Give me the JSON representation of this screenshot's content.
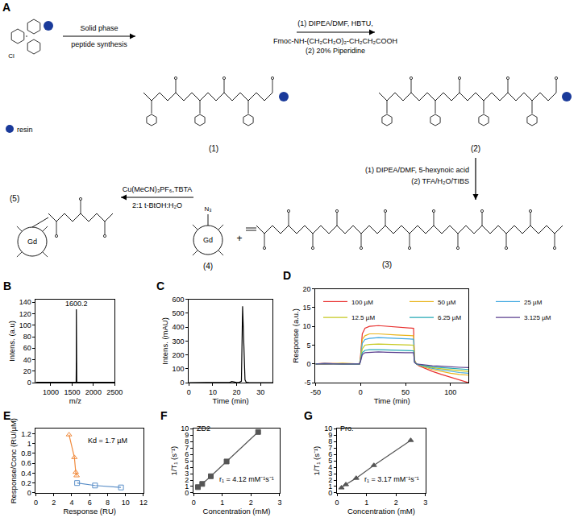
{
  "scheme": {
    "panel": "A",
    "resin_label": "resin",
    "atom_labels": {
      "chloride": "Cl",
      "gadolinium": "Gd",
      "azide": "N₃"
    },
    "step1": [
      "Solid phase",
      "peptide synthesis"
    ],
    "step2": [
      "(1) DIPEA/DMF, HBTU,",
      "Fmoc-NH-(CH₂CH₂O)₂-CH₂CH₂COOH",
      "(2) 20% Piperidine"
    ],
    "step3": [
      "(1) DIPEA/DMF, 5-hexynoic acid",
      "(2) TFA/H₂O/TIBS"
    ],
    "step4": [
      "Cu(MeCN)₃PF₆,TBTA",
      "2:1 t-BtOH:H₂O"
    ],
    "compounds": [
      "(1)",
      "(2)",
      "(3)",
      "(4)",
      "(5)"
    ],
    "plus": "+"
  },
  "chart_data": [
    {
      "panel": "B",
      "type": "line",
      "x_label": "m/z",
      "y_label": "Intens. (a.u)",
      "grid": false,
      "xlim": [
        650,
        2500
      ],
      "ylim": [
        0,
        145
      ],
      "xticks": [
        1000,
        1500,
        2000,
        2500
      ],
      "yticks": [
        0,
        20,
        40,
        60,
        80,
        100,
        120,
        140
      ],
      "series": [
        {
          "color": "#000000",
          "line_style": "solid",
          "x": [
            650,
            800,
            1000,
            1200,
            1400,
            1550,
            1595,
            1599,
            1600.2,
            1601,
            1603,
            1610,
            1700,
            1900,
            2100,
            2300,
            2500
          ],
          "values": [
            0.5,
            0.5,
            0.5,
            0.5,
            0.5,
            0.5,
            1,
            40,
            128,
            75,
            20,
            0.5,
            0.5,
            0.5,
            0.5,
            0.5,
            0.5
          ]
        }
      ],
      "annotations": [
        {
          "text": "1600.2",
          "x": 1600.2,
          "y": 128
        }
      ]
    },
    {
      "panel": "C",
      "type": "line",
      "x_label": "Time (min)",
      "y_label": "Intens. (mAU)",
      "grid": false,
      "xlim": [
        0,
        35
      ],
      "ylim": [
        0,
        600
      ],
      "xticks": [
        0,
        10,
        20,
        30
      ],
      "yticks": [
        0,
        100,
        200,
        300,
        400,
        500,
        600
      ],
      "series": [
        {
          "color": "#000000",
          "line_style": "solid",
          "x": [
            0,
            5,
            10,
            15,
            17,
            18,
            19,
            20,
            21,
            22,
            22.5,
            23,
            23.5,
            24,
            25,
            30,
            35
          ],
          "values": [
            0,
            0,
            0,
            0,
            2,
            8,
            3,
            1,
            2,
            10,
            550,
            300,
            20,
            3,
            1,
            0,
            0
          ]
        }
      ],
      "annotations": []
    },
    {
      "panel": "D",
      "type": "line",
      "x_label": "Time (min)",
      "y_label": "Response (a.u.)",
      "grid": false,
      "xlim": [
        -50,
        120
      ],
      "ylim": [
        -5,
        20
      ],
      "xticks": [
        -50,
        0,
        50,
        100
      ],
      "yticks": [
        -5,
        0,
        5,
        10,
        15,
        20
      ],
      "series": [
        {
          "name": "100 µM",
          "color": "#e8312f",
          "line_style": "solid",
          "x": [
            -50,
            -40,
            -20,
            -1,
            0,
            2,
            5,
            10,
            20,
            30,
            40,
            50,
            59,
            60,
            62,
            65,
            70,
            80,
            90,
            100,
            110,
            120
          ],
          "values": [
            0,
            0.2,
            0,
            0,
            2,
            8,
            9.5,
            10,
            10.2,
            10,
            9.8,
            9.6,
            9.5,
            1,
            0,
            -0.5,
            -1,
            -2,
            -2.8,
            -3.5,
            -4.2,
            -5
          ]
        },
        {
          "name": "50 µM",
          "color": "#e8b41a",
          "line_style": "solid",
          "x": [
            -50,
            -40,
            -20,
            -1,
            0,
            2,
            5,
            10,
            20,
            30,
            40,
            50,
            59,
            60,
            62,
            65,
            70,
            80,
            90,
            100,
            110,
            120
          ],
          "values": [
            0,
            0,
            0.2,
            0,
            1.5,
            6.5,
            7.5,
            8,
            8,
            7.8,
            7.7,
            7.6,
            7.5,
            1,
            0,
            -0.3,
            -0.8,
            -1.5,
            -2,
            -2.5,
            -2.8,
            -3
          ]
        },
        {
          "name": "25 µM",
          "color": "#3fa8e0",
          "line_style": "solid",
          "x": [
            -50,
            -40,
            -20,
            -1,
            0,
            2,
            5,
            10,
            20,
            30,
            40,
            50,
            59,
            60,
            62,
            65,
            70,
            80,
            90,
            100,
            110,
            120
          ],
          "values": [
            0,
            0.1,
            0,
            0,
            1.2,
            5.5,
            6.5,
            6.8,
            7,
            6.9,
            6.8,
            6.7,
            6.6,
            0.8,
            0,
            -0.3,
            -0.6,
            -1.2,
            -1.6,
            -2,
            -2.3,
            -2.5
          ]
        },
        {
          "name": "12.5 µM",
          "color": "#c6c81f",
          "line_style": "solid",
          "x": [
            -50,
            -40,
            -20,
            -1,
            0,
            2,
            5,
            10,
            20,
            30,
            40,
            50,
            59,
            60,
            62,
            65,
            70,
            80,
            90,
            100,
            110,
            120
          ],
          "values": [
            0,
            0,
            0.1,
            0,
            1,
            4,
            5,
            5.2,
            5.3,
            5.2,
            5.1,
            5,
            5,
            0.7,
            0,
            -0.2,
            -0.5,
            -1,
            -1.3,
            -1.6,
            -1.8,
            -2
          ]
        },
        {
          "name": "6.25 µM",
          "color": "#25a9b5",
          "line_style": "solid",
          "x": [
            -50,
            -40,
            -20,
            -1,
            0,
            2,
            5,
            10,
            20,
            30,
            40,
            50,
            59,
            60,
            62,
            65,
            70,
            80,
            90,
            100,
            110,
            120
          ],
          "values": [
            0,
            0.1,
            0,
            0,
            0.8,
            3,
            3.6,
            3.8,
            3.8,
            3.7,
            3.7,
            3.6,
            3.5,
            0.5,
            0,
            -0.2,
            -0.4,
            -0.8,
            -1,
            -1.2,
            -1.4,
            -1.5
          ]
        },
        {
          "name": "3.125 µM",
          "color": "#5b3f8f",
          "line_style": "solid",
          "x": [
            -50,
            -40,
            -20,
            -1,
            0,
            2,
            5,
            10,
            20,
            30,
            40,
            50,
            59,
            60,
            62,
            65,
            70,
            80,
            90,
            100,
            110,
            120
          ],
          "values": [
            0,
            0,
            0.1,
            0,
            0.6,
            2.5,
            3,
            3.1,
            3.2,
            3.1,
            3,
            3,
            3,
            0.4,
            0,
            -0.1,
            -0.3,
            -0.5,
            -0.6,
            -0.8,
            -0.9,
            -1
          ]
        }
      ],
      "annotations": []
    },
    {
      "panel": "E",
      "type": "scatter",
      "x_label": "Response (RU)",
      "y_label": "Response/Conc (RU/µM)",
      "grid": false,
      "xlim": [
        0,
        12
      ],
      "ylim": [
        0,
        1.3
      ],
      "xticks": [
        0,
        2,
        4,
        6,
        8,
        10,
        12
      ],
      "yticks": [
        0,
        0.2,
        0.4,
        0.6,
        0.8,
        1,
        1.2
      ],
      "series": [
        {
          "color": "#f08a3c",
          "marker": "triangle-up-open",
          "line_style": "solid",
          "x": [
            3.7,
            4.3,
            4.45,
            4.55
          ],
          "values": [
            1.18,
            0.72,
            0.42,
            0.35
          ]
        },
        {
          "color": "#5b8fc8",
          "marker": "square-open",
          "line_style": "solid",
          "x": [
            4.6,
            6.6,
            9.5
          ],
          "values": [
            0.2,
            0.15,
            0.11
          ]
        }
      ],
      "annotations": [
        {
          "text": "Kd = 1.7 µM",
          "x": 8,
          "y": 0.95
        }
      ]
    },
    {
      "panel": "F",
      "type": "scatter",
      "x_label": "Concentration (mM)",
      "y_label": "1/T₁ (s⁻¹)",
      "grid": false,
      "xlim": [
        0,
        3
      ],
      "ylim": [
        0,
        10
      ],
      "xticks": [
        0,
        1,
        2,
        3
      ],
      "yticks": [
        0,
        1,
        2,
        3,
        4,
        5,
        6,
        7,
        8,
        9,
        10
      ],
      "series": [
        {
          "color": "#555555",
          "marker": "square",
          "line_style": "solid",
          "x": [
            0.15,
            0.3,
            0.6,
            1.15,
            2.25
          ],
          "values": [
            0.9,
            1.4,
            2.6,
            4.9,
            9.5
          ]
        }
      ],
      "annotations": [
        {
          "text": "ZD2",
          "x": 0.35,
          "y": 9.2
        },
        {
          "text": "r₁ = 4.12 mM⁻¹s⁻¹",
          "x": 1.85,
          "y": 1.2
        }
      ]
    },
    {
      "panel": "G",
      "type": "scatter",
      "x_label": "Concentration (mM)",
      "y_label": "1/T₁ (s⁻¹)",
      "grid": false,
      "xlim": [
        0,
        3
      ],
      "ylim": [
        0,
        10
      ],
      "xticks": [
        0,
        1,
        2,
        3
      ],
      "yticks": [
        0,
        1,
        2,
        3,
        4,
        5,
        6,
        7,
        8,
        9,
        10
      ],
      "series": [
        {
          "color": "#555555",
          "marker": "triangle-up",
          "line_style": "solid",
          "x": [
            0.15,
            0.3,
            0.65,
            1.25,
            2.5
          ],
          "values": [
            0.8,
            1.3,
            2.3,
            4.3,
            8.2
          ]
        }
      ],
      "annotations": [
        {
          "text": "Pro.",
          "x": 0.35,
          "y": 9.2
        },
        {
          "text": "r₁ = 3.17 mM⁻¹s⁻¹",
          "x": 1.85,
          "y": 1.2
        }
      ]
    }
  ]
}
